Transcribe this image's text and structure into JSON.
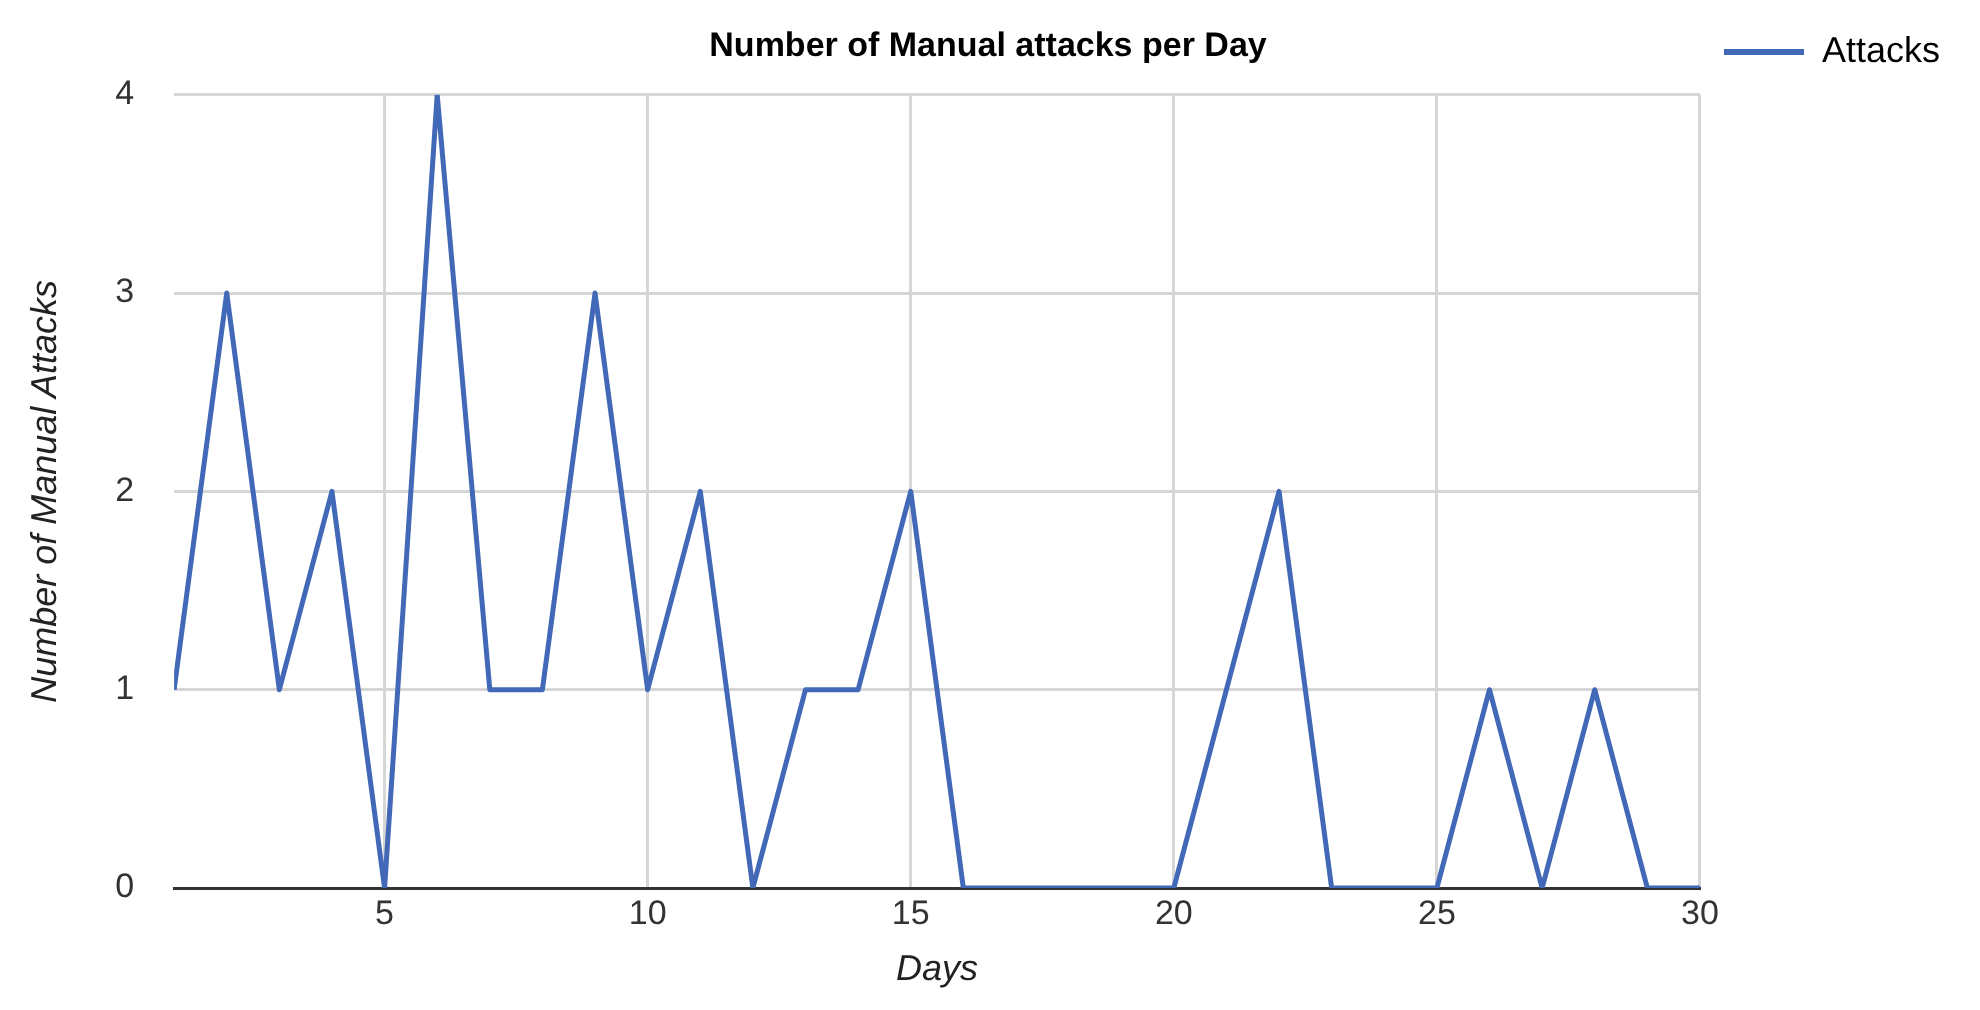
{
  "chart_data": {
    "type": "line",
    "title": "Number of Manual attacks per Day",
    "xlabel": "Days",
    "ylabel": "Number of Manual Attacks",
    "x": [
      1,
      2,
      3,
      4,
      5,
      6,
      7,
      8,
      9,
      10,
      11,
      12,
      13,
      14,
      15,
      16,
      17,
      18,
      19,
      20,
      21,
      22,
      23,
      24,
      25,
      26,
      27,
      28,
      29,
      30
    ],
    "series": [
      {
        "name": "Attacks",
        "color": "#4169b8",
        "values": [
          1,
          3,
          1,
          2,
          0,
          4,
          1,
          1,
          3,
          1,
          2,
          0,
          1,
          1,
          2,
          0,
          0,
          0,
          0,
          0,
          1,
          2,
          0,
          0,
          0,
          1,
          0,
          1,
          0,
          0
        ]
      }
    ],
    "xlim": [
      1,
      30
    ],
    "xticks": [
      5,
      10,
      15,
      20,
      25,
      30
    ],
    "ylim": [
      0,
      4
    ],
    "yticks": [
      0,
      1,
      2,
      3,
      4
    ],
    "grid": true,
    "legend": "top right",
    "marker": "none",
    "line_style": "solid"
  }
}
